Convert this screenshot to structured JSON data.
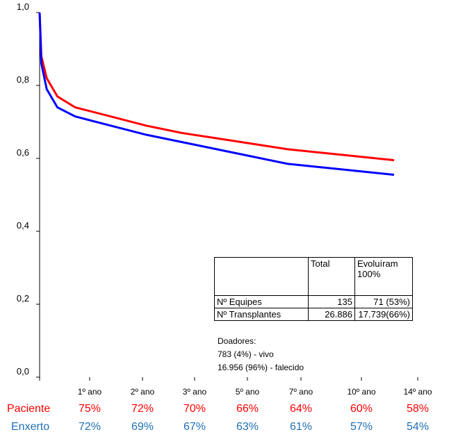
{
  "chart_data": {
    "type": "line",
    "y_ticks": [
      "1,0",
      "0,8",
      "0,6",
      "0,4",
      "0,2",
      "0,0"
    ],
    "ylim": [
      0,
      1
    ],
    "x_ticks": [
      "1º ano",
      "2º ano",
      "3º ano",
      "5º ano",
      "7º ano",
      "10º ano",
      "14º ano"
    ],
    "series": [
      {
        "name": "Paciente",
        "color": "#ff0000",
        "x": [
          0,
          0.05,
          0.2,
          0.5,
          1,
          2,
          3,
          4,
          5,
          6,
          7,
          8,
          9,
          10
        ],
        "y": [
          1.0,
          0.88,
          0.82,
          0.77,
          0.74,
          0.715,
          0.69,
          0.67,
          0.655,
          0.64,
          0.625,
          0.615,
          0.605,
          0.595
        ]
      },
      {
        "name": "Enxerto",
        "color": "#0000ff",
        "x": [
          0,
          0.05,
          0.2,
          0.5,
          1,
          2,
          3,
          4,
          5,
          6,
          7,
          8,
          9,
          10
        ],
        "y": [
          1.0,
          0.86,
          0.79,
          0.74,
          0.715,
          0.69,
          0.665,
          0.645,
          0.625,
          0.605,
          0.585,
          0.575,
          0.565,
          0.555
        ]
      }
    ],
    "summary_rows": [
      {
        "label": "Paciente",
        "color": "#ff0000",
        "values": [
          "75%",
          "72%",
          "70%",
          "66%",
          "64%",
          "60%",
          "58%"
        ]
      },
      {
        "label": "Enxerto",
        "color": "#1f6fb5",
        "values": [
          "72%",
          "69%",
          "67%",
          "63%",
          "61%",
          "57%",
          "54%"
        ]
      }
    ]
  },
  "table": {
    "header_total": "Total",
    "header_evoluiram": "Evoluíram 100%",
    "row1": {
      "label": "Nº Equipes",
      "total": "135",
      "evoluiram": "71 (53%)"
    },
    "row2": {
      "label": "Nº Transplantes",
      "total": "26.886",
      "evoluiram": "17.739(66%)"
    }
  },
  "donors": {
    "title": "Doadores:",
    "line1": "783 (4%) - vivo",
    "line2": "16.956 (96%) - falecido"
  }
}
